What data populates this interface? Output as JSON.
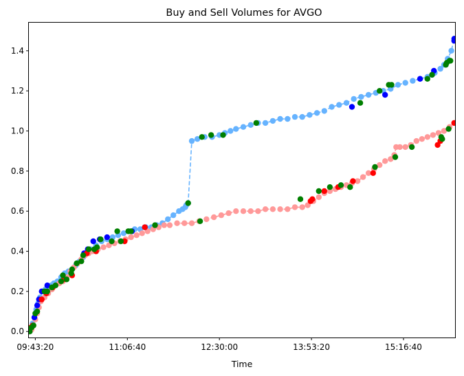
{
  "chart_data": {
    "type": "line",
    "title": "Buy and Sell Volumes for AVGO",
    "xlabel": "Time",
    "ylabel": "",
    "x_unit": "seconds since midnight",
    "xlim": [
      34650,
      57800
    ],
    "ylim": [
      -0.03,
      1.54
    ],
    "xticks": [
      {
        "value": 35000,
        "label": "09:43:20"
      },
      {
        "value": 40000,
        "label": "11:06:40"
      },
      {
        "value": 45000,
        "label": "12:30:00"
      },
      {
        "value": 50000,
        "label": "13:53:20"
      },
      {
        "value": 55000,
        "label": "15:16:40"
      }
    ],
    "yticks": [
      {
        "value": 0.0,
        "label": "0.0"
      },
      {
        "value": 0.2,
        "label": "0.2"
      },
      {
        "value": 0.4,
        "label": "0.4"
      },
      {
        "value": 0.6,
        "label": "0.6"
      },
      {
        "value": 0.8,
        "label": "0.8"
      },
      {
        "value": 1.0,
        "label": "1.0"
      },
      {
        "value": 1.2,
        "label": "1.2"
      },
      {
        "value": 1.4,
        "label": "1.4"
      }
    ],
    "grid": false,
    "legend": "none",
    "series": [
      {
        "color": "#66b3ff",
        "line_style": "dashed",
        "x": [
          34700,
          34780,
          34850,
          34950,
          35050,
          35150,
          35250,
          35400,
          35550,
          35700,
          35850,
          36000,
          36200,
          36400,
          36600,
          36800,
          37000,
          37200,
          37400,
          37600,
          37800,
          38000,
          38300,
          38600,
          38900,
          39200,
          39500,
          39800,
          40100,
          40400,
          40700,
          41000,
          41300,
          41600,
          41900,
          42200,
          42500,
          42800,
          43000,
          43150,
          43200,
          43300,
          43500,
          43800,
          44200,
          44600,
          45000,
          45300,
          45600,
          45900,
          46300,
          46700,
          47100,
          47500,
          47900,
          48300,
          48700,
          49100,
          49500,
          49900,
          50300,
          50700,
          51100,
          51500,
          51900,
          52300,
          52700,
          53100,
          53500,
          53900,
          54300,
          54700,
          55100,
          55500,
          55900,
          56300,
          56700,
          57000,
          57200,
          57400,
          57600,
          57750
        ],
        "y": [
          0.0,
          0.02,
          0.04,
          0.07,
          0.11,
          0.14,
          0.17,
          0.2,
          0.21,
          0.22,
          0.23,
          0.24,
          0.25,
          0.27,
          0.29,
          0.3,
          0.31,
          0.33,
          0.35,
          0.37,
          0.39,
          0.41,
          0.43,
          0.45,
          0.46,
          0.47,
          0.48,
          0.49,
          0.5,
          0.51,
          0.51,
          0.52,
          0.52,
          0.53,
          0.54,
          0.56,
          0.58,
          0.6,
          0.61,
          0.62,
          0.63,
          0.64,
          0.95,
          0.96,
          0.97,
          0.97,
          0.98,
          0.99,
          1.0,
          1.01,
          1.02,
          1.03,
          1.04,
          1.04,
          1.05,
          1.06,
          1.06,
          1.07,
          1.07,
          1.08,
          1.09,
          1.1,
          1.12,
          1.13,
          1.14,
          1.16,
          1.17,
          1.18,
          1.19,
          1.2,
          1.21,
          1.23,
          1.24,
          1.25,
          1.26,
          1.27,
          1.29,
          1.31,
          1.33,
          1.36,
          1.4,
          1.46
        ]
      },
      {
        "color": "#ff9999",
        "line_style": "dashed",
        "x": [
          34700,
          34800,
          34900,
          35000,
          35100,
          35200,
          35300,
          35500,
          35700,
          35900,
          36100,
          36300,
          36500,
          36700,
          36900,
          37100,
          37300,
          37500,
          37700,
          37900,
          38100,
          38400,
          38700,
          39000,
          39300,
          39600,
          39900,
          40200,
          40500,
          40800,
          41100,
          41400,
          41700,
          42000,
          42300,
          42700,
          43100,
          43500,
          43900,
          44300,
          44700,
          45100,
          45500,
          45900,
          46300,
          46700,
          47100,
          47500,
          47900,
          48300,
          48700,
          49100,
          49500,
          49800,
          50100,
          50400,
          50700,
          51000,
          51300,
          51600,
          51900,
          52200,
          52500,
          52800,
          53100,
          53400,
          53700,
          54000,
          54300,
          54500,
          54600,
          54800,
          55100,
          55400,
          55700,
          56000,
          56300,
          56600,
          56900,
          57200,
          57500,
          57750
        ],
        "y": [
          0.0,
          0.01,
          0.03,
          0.06,
          0.09,
          0.12,
          0.15,
          0.17,
          0.19,
          0.21,
          0.23,
          0.24,
          0.25,
          0.27,
          0.3,
          0.32,
          0.34,
          0.36,
          0.38,
          0.39,
          0.4,
          0.41,
          0.42,
          0.43,
          0.44,
          0.45,
          0.46,
          0.47,
          0.48,
          0.49,
          0.5,
          0.51,
          0.52,
          0.53,
          0.53,
          0.54,
          0.54,
          0.54,
          0.55,
          0.56,
          0.57,
          0.58,
          0.59,
          0.6,
          0.6,
          0.6,
          0.6,
          0.61,
          0.61,
          0.61,
          0.61,
          0.62,
          0.62,
          0.63,
          0.65,
          0.67,
          0.69,
          0.7,
          0.71,
          0.72,
          0.73,
          0.74,
          0.75,
          0.77,
          0.79,
          0.81,
          0.83,
          0.85,
          0.86,
          0.88,
          0.92,
          0.92,
          0.92,
          0.93,
          0.95,
          0.96,
          0.97,
          0.98,
          0.99,
          1.0,
          1.02,
          1.04
        ]
      }
    ],
    "markers": [
      {
        "color": "#0000ff",
        "points": [
          [
            34950,
            0.07
          ],
          [
            35100,
            0.13
          ],
          [
            35200,
            0.16
          ],
          [
            35350,
            0.2
          ],
          [
            35650,
            0.23
          ],
          [
            37650,
            0.39
          ],
          [
            37850,
            0.41
          ],
          [
            38150,
            0.45
          ],
          [
            38500,
            0.46
          ],
          [
            38900,
            0.47
          ],
          [
            40250,
            0.5
          ],
          [
            40950,
            0.52
          ],
          [
            52200,
            1.12
          ],
          [
            54000,
            1.18
          ],
          [
            55900,
            1.26
          ],
          [
            56550,
            1.28
          ],
          [
            56650,
            1.3
          ],
          [
            57750,
            1.45
          ],
          [
            57760,
            1.46
          ]
        ]
      },
      {
        "color": "#ff0000",
        "points": [
          [
            34750,
            0.02
          ],
          [
            34850,
            0.03
          ],
          [
            35350,
            0.16
          ],
          [
            35600,
            0.19
          ],
          [
            35950,
            0.22
          ],
          [
            36550,
            0.26
          ],
          [
            37000,
            0.28
          ],
          [
            37800,
            0.39
          ],
          [
            38300,
            0.4
          ],
          [
            39850,
            0.45
          ],
          [
            40950,
            0.52
          ],
          [
            49950,
            0.65
          ],
          [
            50050,
            0.66
          ],
          [
            50700,
            0.7
          ],
          [
            51450,
            0.72
          ],
          [
            52250,
            0.75
          ],
          [
            53350,
            0.79
          ],
          [
            56850,
            0.93
          ],
          [
            57000,
            0.95
          ],
          [
            57750,
            1.04
          ]
        ]
      },
      {
        "color": "#007f00",
        "points": [
          [
            34700,
            0.0
          ],
          [
            34800,
            0.02
          ],
          [
            34900,
            0.03
          ],
          [
            35000,
            0.09
          ],
          [
            35100,
            0.1
          ],
          [
            35500,
            0.2
          ],
          [
            35650,
            0.2
          ],
          [
            35900,
            0.22
          ],
          [
            36100,
            0.23
          ],
          [
            36400,
            0.25
          ],
          [
            36500,
            0.28
          ],
          [
            36700,
            0.26
          ],
          [
            36950,
            0.29
          ],
          [
            37000,
            0.31
          ],
          [
            37250,
            0.34
          ],
          [
            37500,
            0.35
          ],
          [
            37600,
            0.38
          ],
          [
            37900,
            0.41
          ],
          [
            38200,
            0.41
          ],
          [
            38350,
            0.42
          ],
          [
            38550,
            0.46
          ],
          [
            39150,
            0.45
          ],
          [
            39450,
            0.5
          ],
          [
            39650,
            0.45
          ],
          [
            40050,
            0.5
          ],
          [
            40200,
            0.5
          ],
          [
            41500,
            0.53
          ],
          [
            43300,
            0.64
          ],
          [
            43950,
            0.55
          ],
          [
            44050,
            0.97
          ],
          [
            44550,
            0.98
          ],
          [
            45200,
            0.98
          ],
          [
            47000,
            1.04
          ],
          [
            49400,
            0.66
          ],
          [
            50400,
            0.7
          ],
          [
            51000,
            0.72
          ],
          [
            51600,
            0.73
          ],
          [
            52100,
            0.72
          ],
          [
            52650,
            1.14
          ],
          [
            53450,
            0.82
          ],
          [
            53700,
            1.2
          ],
          [
            54200,
            1.23
          ],
          [
            54350,
            1.23
          ],
          [
            54550,
            0.87
          ],
          [
            55450,
            0.92
          ],
          [
            56300,
            1.26
          ],
          [
            56550,
            1.28
          ],
          [
            57050,
            0.97
          ],
          [
            57100,
            0.96
          ],
          [
            57300,
            1.33
          ],
          [
            57350,
            1.34
          ],
          [
            57500,
            1.35
          ],
          [
            57550,
            1.35
          ],
          [
            57450,
            1.01
          ]
        ]
      }
    ]
  }
}
